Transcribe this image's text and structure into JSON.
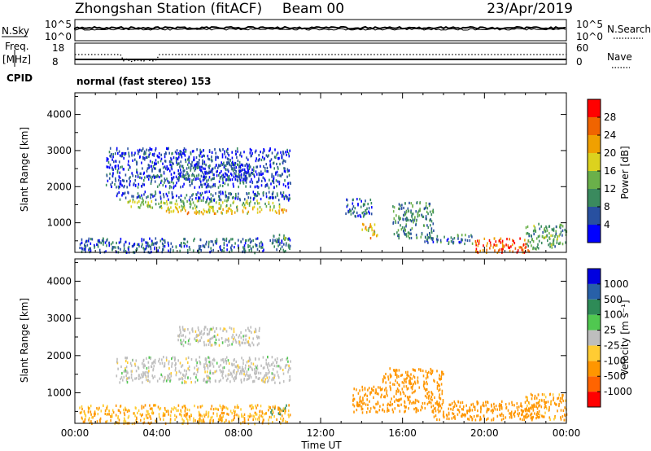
{
  "header": {
    "title": "Zhongshan Station (fitACF)",
    "beam": "Beam 00",
    "date": "23/Apr/2019"
  },
  "strip_labels": {
    "nsky": "N.Sky",
    "nsky_ticks": [
      "10^5",
      "10^0"
    ],
    "nsearch": "N.Search",
    "nsearch_ticks": [
      "10^5",
      "10^0"
    ],
    "freq_line1": "Freq.",
    "freq_line2": "[MHz]",
    "freq_ticks": [
      "18",
      "8"
    ],
    "nave": "Nave",
    "nave_ticks": [
      "60",
      "0"
    ],
    "cpid": "CPID",
    "cpid_text": "normal (fast stereo) 153"
  },
  "colors": {
    "power": [
      "#0000ff",
      "#2850a0",
      "#3a8a5e",
      "#6ab04a",
      "#dcd21e",
      "#f0a000",
      "#f06400",
      "#ff0000"
    ],
    "velocity": [
      "#ff0000",
      "#ff6400",
      "#ff9600",
      "#ffcc33",
      "#bebebe",
      "#50c850",
      "#2e8b57",
      "#2860a8",
      "#0000e0"
    ]
  },
  "chart_data": [
    {
      "type": "heatmap",
      "name": "power-panel",
      "xlabel": "",
      "ylabel": "Slant Range [km]",
      "xlim": [
        0,
        24
      ],
      "ylim": [
        180,
        4600
      ],
      "y_ticks": [
        1000,
        2000,
        3000,
        4000
      ],
      "colorbar": {
        "label": "Power [dB]",
        "range": [
          0,
          32
        ],
        "ticks": [
          4,
          8,
          12,
          16,
          20,
          24,
          28
        ]
      },
      "regions": [
        {
          "x": [
            2.0,
            10.5
          ],
          "y": [
            1650,
            1900
          ],
          "v": 6
        },
        {
          "x": [
            2.5,
            10.0
          ],
          "y": [
            1450,
            1650
          ],
          "v": 15
        },
        {
          "x": [
            4.0,
            9.0
          ],
          "y": [
            1280,
            1450
          ],
          "v": 20
        },
        {
          "x": [
            5.0,
            8.5
          ],
          "y": [
            2200,
            2700
          ],
          "v": 6
        },
        {
          "x": [
            9.0,
            10.3
          ],
          "y": [
            1280,
            1400
          ],
          "v": 22
        },
        {
          "x": [
            9.5,
            10.4
          ],
          "y": [
            450,
            700
          ],
          "v": 12
        },
        {
          "x": [
            1.5,
            10.5
          ],
          "y": [
            2000,
            3100
          ],
          "v": 5
        },
        {
          "x": [
            13.2,
            14.5
          ],
          "y": [
            1200,
            1700
          ],
          "v": 6
        },
        {
          "x": [
            14.0,
            14.8
          ],
          "y": [
            600,
            1000
          ],
          "v": 20
        },
        {
          "x": [
            15.5,
            17.5
          ],
          "y": [
            600,
            1600
          ],
          "v": 10
        },
        {
          "x": [
            17.0,
            19.5
          ],
          "y": [
            450,
            700
          ],
          "v": 8
        },
        {
          "x": [
            19.5,
            22.2
          ],
          "y": [
            200,
            600
          ],
          "v": 26
        },
        {
          "x": [
            22.0,
            24.0
          ],
          "y": [
            300,
            1000
          ],
          "v": 12
        },
        {
          "x": [
            0.2,
            10.5
          ],
          "y": [
            200,
            600
          ],
          "v": 7
        }
      ]
    },
    {
      "type": "heatmap",
      "name": "velocity-panel",
      "xlabel": "Time UT",
      "ylabel": "Slant Range [km]",
      "xlim": [
        0,
        24
      ],
      "ylim": [
        180,
        4600
      ],
      "y_ticks": [
        1000,
        2000,
        3000,
        4000
      ],
      "x_ticks": [
        "00:00",
        "04:00",
        "08:00",
        "12:00",
        "16:00",
        "20:00",
        "00:00"
      ],
      "colorbar": {
        "label": "Velocity [m s⁻¹]",
        "ticks": [
          "1000",
          "500",
          "100",
          "25",
          "-25",
          "-100",
          "-500",
          "-1000"
        ]
      },
      "regions": [
        {
          "x": [
            2.0,
            10.5
          ],
          "y": [
            1300,
            2000
          ],
          "v": 0
        },
        {
          "x": [
            5.0,
            9.0
          ],
          "y": [
            2300,
            2800
          ],
          "v": 0
        },
        {
          "x": [
            9.5,
            10.4
          ],
          "y": [
            450,
            700
          ],
          "v": 150
        },
        {
          "x": [
            13.5,
            15.0
          ],
          "y": [
            500,
            1200
          ],
          "v": -300
        },
        {
          "x": [
            15.0,
            18.0
          ],
          "y": [
            500,
            1700
          ],
          "v": -200
        },
        {
          "x": [
            17.5,
            22.5
          ],
          "y": [
            300,
            800
          ],
          "v": -250
        },
        {
          "x": [
            22.0,
            24.0
          ],
          "y": [
            300,
            1000
          ],
          "v": -150
        },
        {
          "x": [
            0.2,
            10.5
          ],
          "y": [
            200,
            700
          ],
          "v": -100
        }
      ]
    }
  ]
}
